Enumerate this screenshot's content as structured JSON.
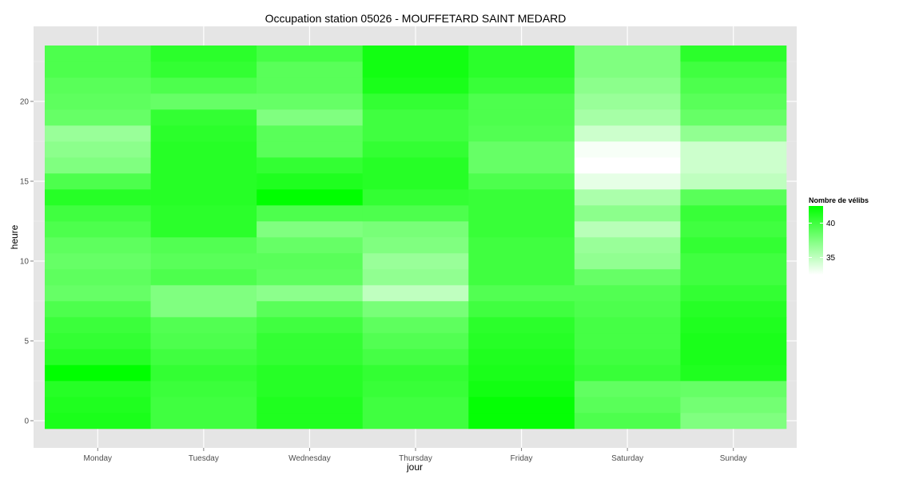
{
  "chart_data": {
    "type": "heatmap",
    "title": "Occupation station 05026 - MOUFFETARD SAINT MEDARD",
    "xlabel": "jour",
    "ylabel": "heure",
    "categories": [
      "Monday",
      "Tuesday",
      "Wednesday",
      "Thursday",
      "Friday",
      "Saturday",
      "Sunday"
    ],
    "hours": [
      0,
      1,
      2,
      3,
      4,
      5,
      6,
      7,
      8,
      9,
      10,
      11,
      12,
      13,
      14,
      15,
      16,
      17,
      18,
      19,
      20,
      21,
      22,
      23
    ],
    "y_ticks": [
      0,
      5,
      10,
      15,
      20
    ],
    "ylim": [
      -0.5,
      23.5
    ],
    "grid": true,
    "legend": {
      "title": "Nombre de vélibs",
      "position": "right",
      "ticks": [
        35,
        40
      ],
      "range": [
        32.5,
        42.5
      ],
      "low_color": "#ffffff",
      "high_color": "#00ff00"
    },
    "values": [
      [
        41.5,
        40.0,
        41.3,
        40.0,
        42.3,
        39.5,
        37.5
      ],
      [
        41.3,
        40.0,
        41.3,
        40.0,
        42.3,
        39.0,
        38.0
      ],
      [
        41.0,
        40.2,
        41.0,
        40.3,
        41.8,
        38.7,
        38.5
      ],
      [
        42.5,
        40.5,
        41.0,
        40.5,
        41.5,
        40.3,
        41.3
      ],
      [
        41.0,
        40.0,
        40.5,
        39.8,
        41.3,
        40.0,
        41.5
      ],
      [
        40.5,
        39.5,
        40.5,
        39.3,
        41.0,
        39.8,
        41.5
      ],
      [
        40.2,
        39.3,
        40.0,
        38.8,
        40.8,
        39.8,
        41.3
      ],
      [
        39.5,
        37.5,
        39.0,
        37.8,
        40.0,
        39.5,
        41.0
      ],
      [
        38.5,
        37.5,
        37.0,
        35.0,
        39.3,
        39.3,
        40.5
      ],
      [
        38.8,
        39.5,
        38.8,
        36.8,
        40.0,
        38.5,
        40.0
      ],
      [
        38.5,
        39.0,
        39.0,
        36.5,
        40.0,
        36.8,
        40.0
      ],
      [
        38.8,
        39.3,
        38.5,
        37.5,
        40.0,
        36.5,
        40.5
      ],
      [
        39.5,
        40.8,
        37.5,
        37.8,
        40.3,
        35.3,
        40.0
      ],
      [
        40.0,
        40.8,
        39.5,
        39.5,
        40.3,
        37.0,
        40.3
      ],
      [
        41.0,
        41.0,
        42.5,
        40.5,
        40.3,
        35.8,
        39.0
      ],
      [
        39.5,
        41.0,
        41.3,
        41.0,
        39.5,
        33.5,
        35.0
      ],
      [
        37.5,
        41.0,
        40.5,
        41.0,
        38.5,
        32.5,
        34.5
      ],
      [
        37.0,
        41.0,
        39.0,
        40.5,
        38.5,
        32.8,
        34.5
      ],
      [
        36.5,
        40.8,
        39.0,
        40.0,
        39.3,
        34.5,
        36.8
      ],
      [
        38.5,
        40.5,
        37.5,
        40.0,
        39.5,
        36.0,
        38.5
      ],
      [
        38.8,
        38.5,
        38.5,
        40.5,
        39.5,
        36.5,
        39.0
      ],
      [
        39.0,
        39.5,
        39.0,
        41.5,
        40.3,
        37.0,
        39.5
      ],
      [
        39.5,
        40.5,
        39.0,
        41.8,
        40.8,
        37.5,
        40.0
      ],
      [
        39.5,
        40.8,
        39.8,
        41.8,
        40.8,
        37.5,
        40.8
      ]
    ]
  }
}
